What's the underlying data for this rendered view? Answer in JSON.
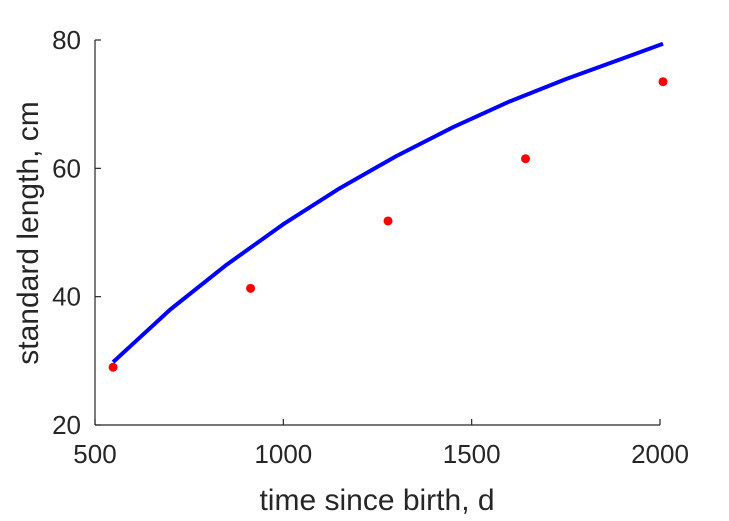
{
  "chart_data": {
    "type": "scatter",
    "xlabel": "time since birth, d",
    "ylabel": "standard length, cm",
    "xlim": [
      500,
      2000
    ],
    "ylim": [
      20,
      80
    ],
    "xticks": [
      500,
      1000,
      1500,
      2000
    ],
    "yticks": [
      20,
      40,
      60,
      80
    ],
    "grid": false,
    "legend": "none",
    "series": [
      {
        "kind": "points",
        "color": "#ff0000",
        "x": [
          548,
          913,
          1278,
          1643,
          2008
        ],
        "y": [
          29.0,
          41.3,
          51.8,
          61.5,
          73.5
        ]
      },
      {
        "kind": "line",
        "color": "#0000ff",
        "x": [
          548,
          700,
          850,
          1000,
          1150,
          1300,
          1450,
          1600,
          1750,
          1900,
          2008
        ],
        "y": [
          29.8,
          38.0,
          45.0,
          51.3,
          56.9,
          61.9,
          66.4,
          70.4,
          73.9,
          77.1,
          79.4
        ]
      }
    ]
  }
}
